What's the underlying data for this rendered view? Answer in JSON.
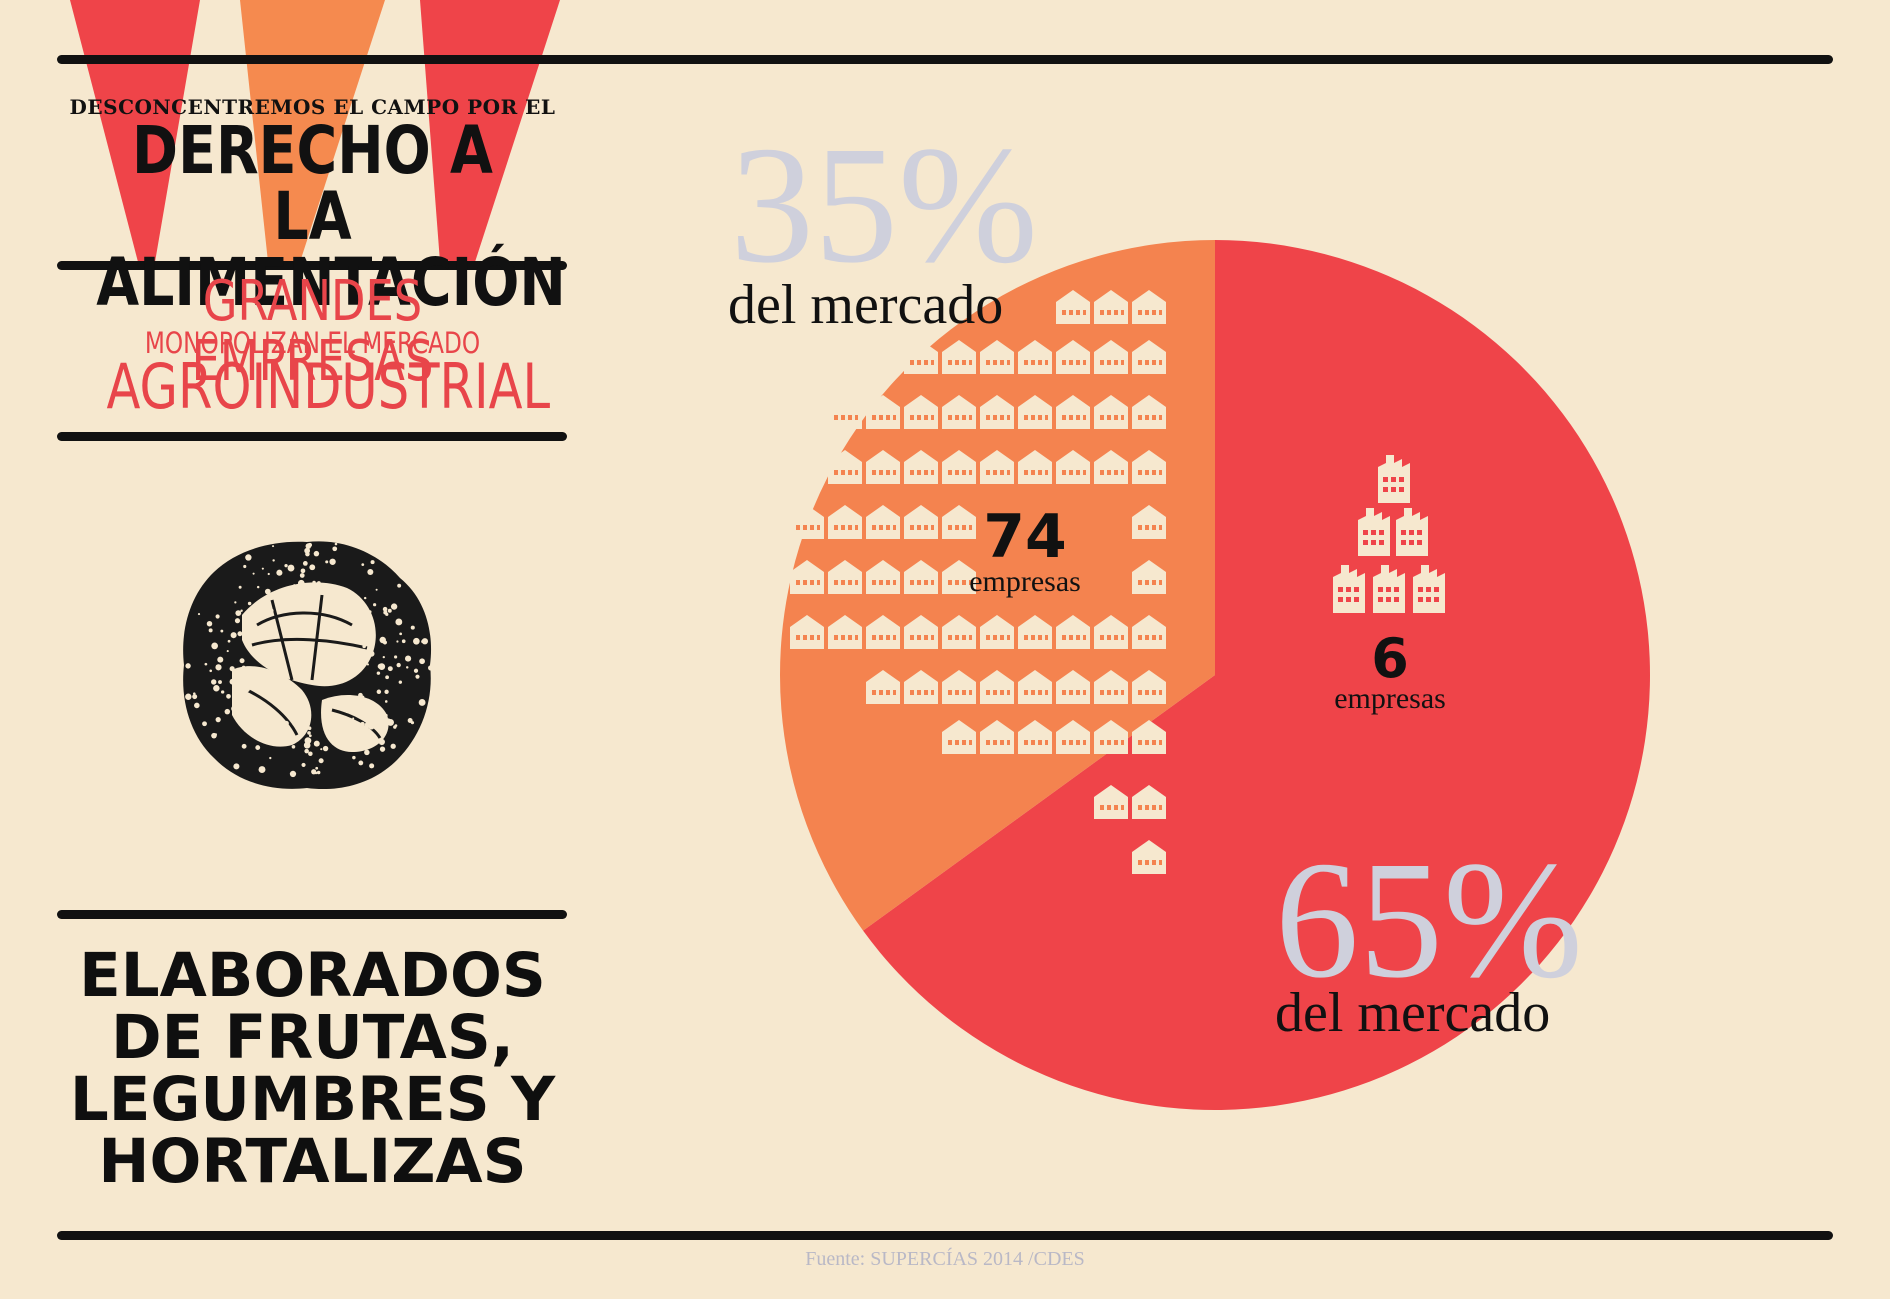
{
  "header": {
    "pre_title": "DESCONCENTREMOS EL CAMPO POR EL",
    "title_line1": "DERECHO A LA",
    "title_line2": "ALIMENTACIÓN",
    "subtitle_line1": "GRANDES EMPRESAS",
    "subtitle_line2": "MONOPOLIZAN EL MERCADO",
    "subtitle_line3": "AGROINDUSTRIAL"
  },
  "product": {
    "line1": "ELABORADOS",
    "line2": "DE FRUTAS,",
    "line3": "LEGUMBRES Y",
    "line4": "HORTALIZAS"
  },
  "colors": {
    "background": "#f6e8cf",
    "large_segment": "#ef4449",
    "small_segment": "#f4834f",
    "banner_orange": "#f58a4f",
    "percent_text": "#cfd0dc",
    "icon_fill": "#f6e8cf"
  },
  "icons": {
    "small_segment_icon": "house-icon",
    "large_segment_icon": "factory-icon",
    "illustration": "lettuce-icon"
  },
  "chart_data": {
    "type": "pie",
    "slices": [
      {
        "share": 65,
        "percent_label": "65%",
        "caption": "del mercado",
        "companies": 6,
        "companies_label": "empresas",
        "color": "#ef4449"
      },
      {
        "share": 35,
        "percent_label": "35%",
        "caption": "del mercado",
        "companies": 74,
        "companies_label": "empresas",
        "color": "#f4834f"
      }
    ]
  },
  "footer": {
    "source": "Fuente: SUPERCÍAS 2014 /CDES"
  }
}
